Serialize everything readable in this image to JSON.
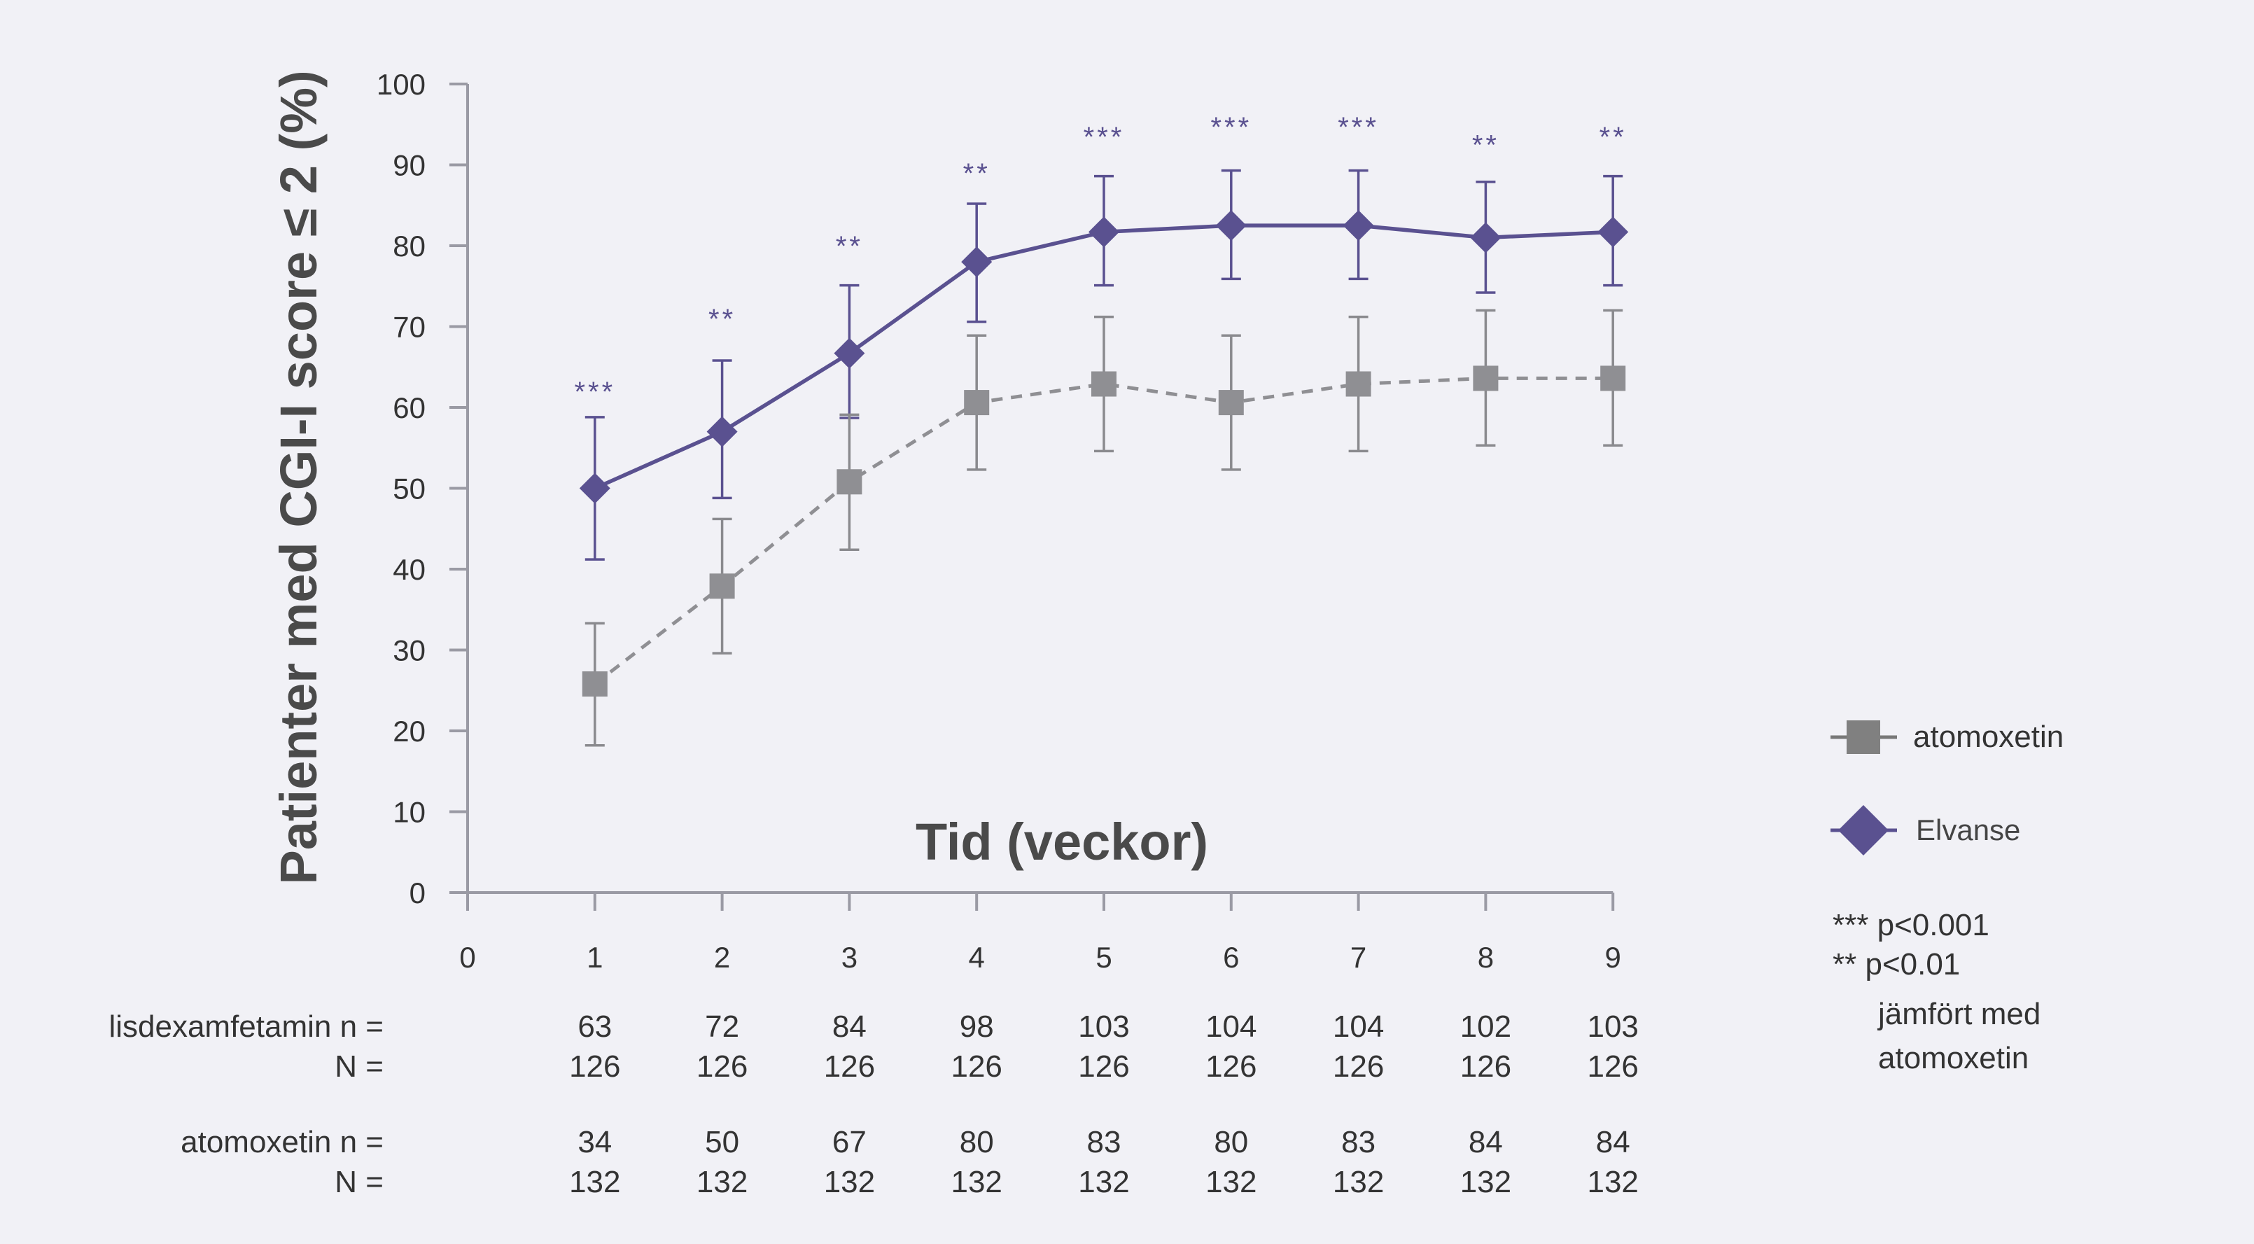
{
  "chart_data": {
    "type": "line",
    "ylabel": "Patienter med CGI-I score ≤ 2 (%)",
    "xlabel": "Tid (veckor)",
    "xlim": [
      0,
      9
    ],
    "ylim": [
      0,
      100
    ],
    "x_ticks": [
      0,
      1,
      2,
      3,
      4,
      5,
      6,
      7,
      8,
      9
    ],
    "y_ticks": [
      0,
      10,
      20,
      30,
      40,
      50,
      60,
      70,
      80,
      90,
      100
    ],
    "grid": false,
    "legend_position": "right",
    "x": [
      1,
      2,
      3,
      4,
      5,
      6,
      7,
      8,
      9
    ],
    "series": [
      {
        "name": "Elvanse",
        "color": "#5a5190",
        "marker": "diamond",
        "line_style": "solid",
        "values": [
          50,
          57,
          66.7,
          78,
          81.7,
          82.5,
          82.5,
          81,
          81.7
        ],
        "error_low": [
          41.2,
          48.8,
          58.7,
          70.6,
          75.1,
          75.9,
          75.9,
          74.2,
          75.1
        ],
        "error_high": [
          58.8,
          65.8,
          75.1,
          85.2,
          88.6,
          89.3,
          89.3,
          87.9,
          88.6
        ]
      },
      {
        "name": "atomoxetin",
        "color": "#8f8f93",
        "marker": "square",
        "line_style": "dashed",
        "values": [
          25.8,
          37.9,
          50.8,
          60.6,
          62.9,
          60.6,
          62.9,
          63.6,
          63.6
        ],
        "error_low": [
          18.2,
          29.6,
          42.4,
          52.3,
          54.6,
          52.3,
          54.6,
          55.3,
          55.3
        ],
        "error_high": [
          33.3,
          46.2,
          59.1,
          68.9,
          71.2,
          68.9,
          71.2,
          72,
          72
        ]
      }
    ],
    "significance": [
      "***",
      "**",
      "**",
      "**",
      "***",
      "***",
      "***",
      "**",
      "**"
    ],
    "significance_y": [
      62,
      71,
      80,
      89,
      93.5,
      94.7,
      94.7,
      92.5,
      93.5
    ],
    "notes": [
      "*** p<0.001",
      "** p<0.01",
      "jämfört med",
      "atomoxetin"
    ],
    "n_table": {
      "rows": [
        {
          "label": "lisdexamfetamin n =",
          "values": [
            "63",
            "72",
            "84",
            "98",
            "103",
            "104",
            "104",
            "102",
            "103"
          ]
        },
        {
          "label": "N =",
          "values": [
            "126",
            "126",
            "126",
            "126",
            "126",
            "126",
            "126",
            "126",
            "126"
          ]
        },
        {
          "label": "atomoxetin n =",
          "values": [
            "34",
            "50",
            "67",
            "80",
            "83",
            "80",
            "83",
            "84",
            "84"
          ]
        },
        {
          "label": "N =",
          "values": [
            "132",
            "132",
            "132",
            "132",
            "132",
            "132",
            "132",
            "132",
            "132"
          ]
        }
      ]
    }
  }
}
